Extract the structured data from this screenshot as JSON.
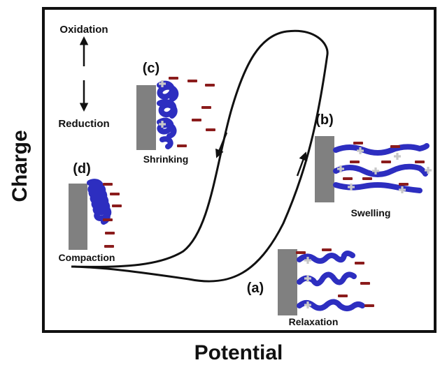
{
  "axes": {
    "x_label": "Potential",
    "y_label": "Charge"
  },
  "legend": {
    "top": "Oxidation",
    "bottom": "Reduction"
  },
  "states": {
    "a": {
      "tag": "(a)",
      "label": "Relaxation"
    },
    "b": {
      "tag": "(b)",
      "label": "Swelling"
    },
    "c": {
      "tag": "(c)",
      "label": "Shrinking"
    },
    "d": {
      "tag": "(d)",
      "label": "Compaction"
    }
  },
  "colors": {
    "polymer": "#2d2ec0",
    "electrode": "#808080",
    "anion": "#8b1c1c",
    "cation": "#c8c8c8",
    "curve": "#000000"
  }
}
